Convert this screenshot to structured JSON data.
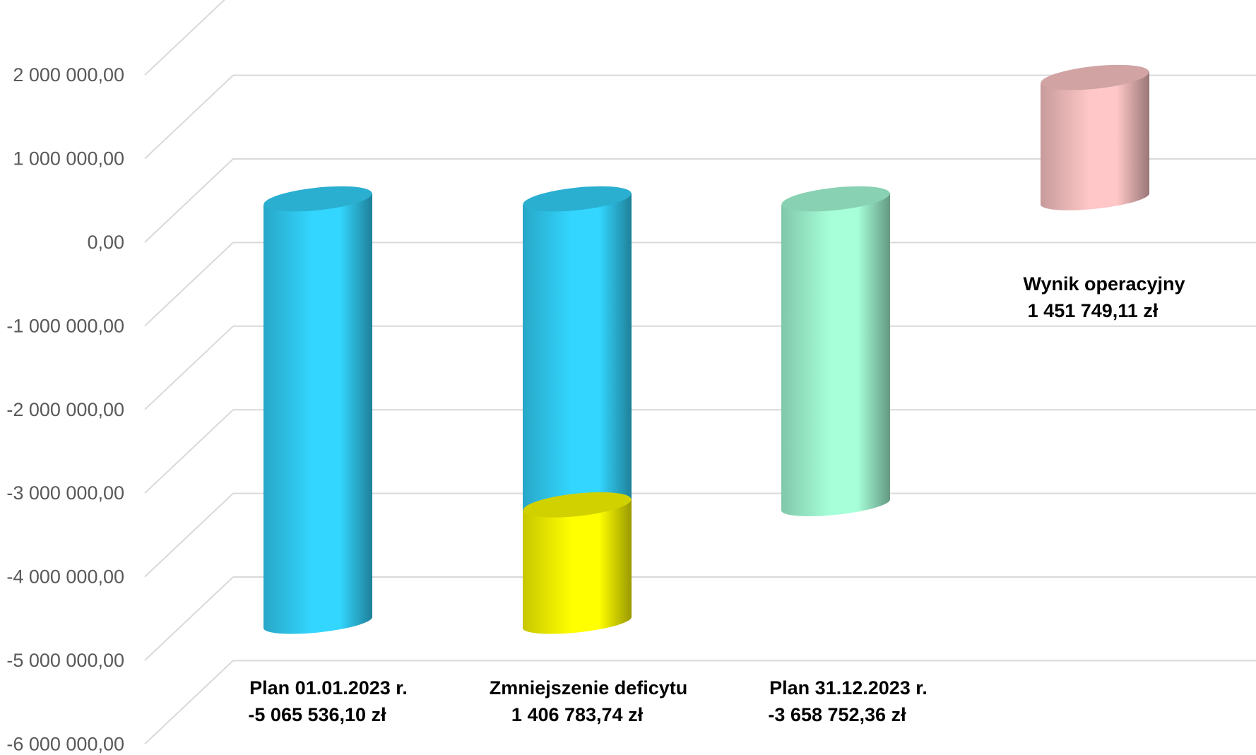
{
  "chart_data": {
    "type": "bar",
    "style": "3d-cylinder-waterfall",
    "title": "",
    "xlabel": "",
    "ylabel": "",
    "ylim": [
      -6000000,
      2000000
    ],
    "grid": true,
    "legend": "none",
    "y_ticks": [
      "-6 000 000,00",
      "-5 000 000,00",
      "-4 000 000,00",
      "-3 000 000,00",
      "-2 000 000,00",
      "-1 000 000,00",
      "0,00",
      "1 000 000,00",
      "2 000 000,00"
    ],
    "categories": [
      {
        "name": "Plan 01.01.2023 r.",
        "value_label": "-5 065 536,10 zł"
      },
      {
        "name": "Zmniejszenie deficytu",
        "value_label": "1 406 783,74 zł"
      },
      {
        "name": "Plan 31.12.2023 r.",
        "value_label": "-3 658 752,36 zł"
      },
      {
        "name": "Wynik operacyjny",
        "value_label": "1 451 749,11 zł"
      }
    ],
    "bars": [
      {
        "category": "Plan 01.01.2023 r.",
        "from": 0,
        "to": -5065536.1,
        "color": "#33d6ff"
      },
      {
        "category": "Zmniejszenie deficytu",
        "from": 0,
        "to": -3658752.36,
        "color": "#33d6ff"
      },
      {
        "category": "Zmniejszenie deficytu",
        "from": -3658752.36,
        "to": -5065536.1,
        "color": "#ffff00"
      },
      {
        "category": "Plan 31.12.2023 r.",
        "from": 0,
        "to": -3658752.36,
        "color": "#a6ffd9"
      },
      {
        "category": "Wynik operacyjny",
        "from": 1451749.11,
        "to": 0,
        "color": "#ffc7c7"
      }
    ]
  }
}
